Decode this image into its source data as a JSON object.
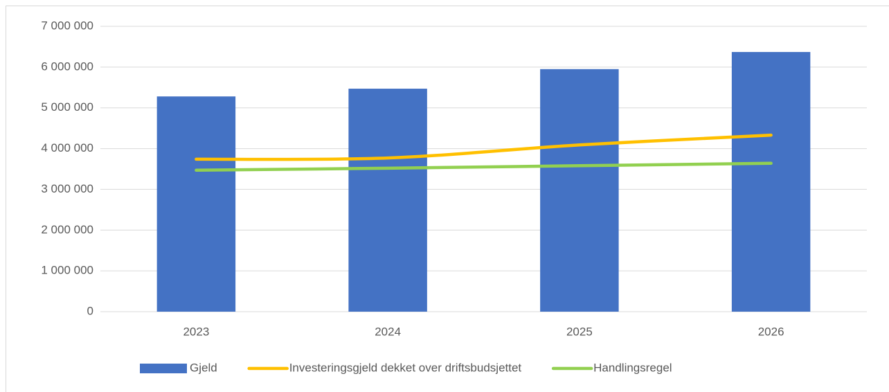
{
  "chart_data": {
    "type": "bar",
    "categories": [
      "2023",
      "2024",
      "2025",
      "2026"
    ],
    "series": [
      {
        "name": "Gjeld",
        "type": "bar",
        "color": "#4472c4",
        "values": [
          5280000,
          5470000,
          5950000,
          6370000
        ]
      },
      {
        "name": "Investeringsgjeld dekket over driftsbudsjettet",
        "type": "line",
        "color": "#ffc000",
        "values": [
          3740000,
          3770000,
          4090000,
          4330000
        ]
      },
      {
        "name": "Handlingsregel",
        "type": "line",
        "color": "#92d050",
        "values": [
          3470000,
          3520000,
          3580000,
          3640000
        ]
      }
    ],
    "ylim": [
      0,
      7000000
    ],
    "yticks": [
      0,
      {
        "value": 1000000,
        "label": "1 000 000"
      },
      {
        "value": 2000000,
        "label": "2 000 000"
      },
      {
        "value": 3000000,
        "label": "3 000 000"
      },
      {
        "value": 4000000,
        "label": "4 000 000"
      },
      {
        "value": 5000000,
        "label": "5 000 000"
      },
      {
        "value": 6000000,
        "label": "6 000 000"
      },
      {
        "value": 7000000,
        "label": "7 000 000"
      }
    ],
    "grid": true,
    "legend": "bottom"
  }
}
